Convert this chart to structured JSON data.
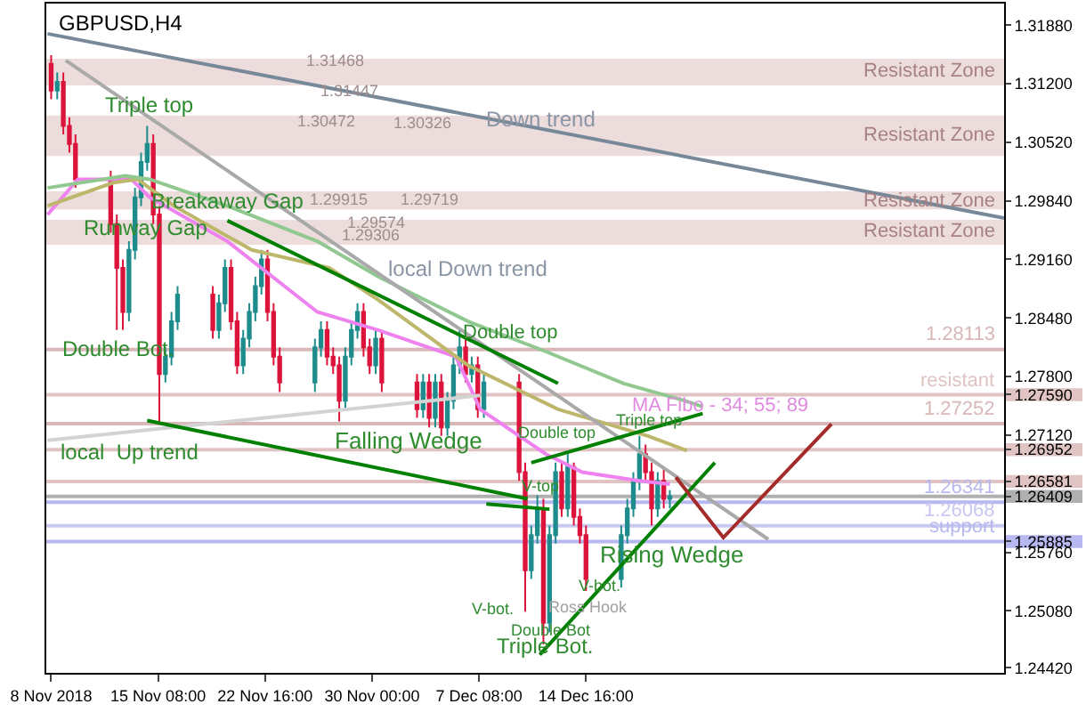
{
  "chart_data": {
    "type": "candlestick",
    "title": "GBPUSD,H4",
    "x": [
      "2018-11-08T00:00",
      "2018-11-08T10:00",
      "2018-11-08T20:00",
      "2018-11-09T06:00",
      "2018-11-09T16:00",
      "2018-11-12T02:00",
      "2018-11-12T12:00",
      "2018-11-12T22:00",
      "2018-11-13T08:00",
      "2018-11-13T18:00",
      "2018-11-14T04:00",
      "2018-11-14T14:00",
      "2018-11-15T00:00",
      "2018-11-15T10:00",
      "2018-11-15T20:00",
      "2018-11-16T06:00",
      "2018-11-16T16:00",
      "2018-11-19T02:00",
      "2018-11-19T12:00",
      "2018-11-19T22:00",
      "2018-11-20T08:00",
      "2018-11-20T18:00",
      "2018-11-21T04:00",
      "2018-11-21T14:00",
      "2018-11-22T00:00",
      "2018-11-22T10:00",
      "2018-11-22T20:00",
      "2018-11-23T06:00",
      "2018-11-23T16:00",
      "2018-11-26T02:00",
      "2018-11-26T12:00",
      "2018-11-26T22:00",
      "2018-11-27T08:00",
      "2018-11-27T18:00",
      "2018-11-28T04:00",
      "2018-11-28T14:00",
      "2018-11-29T00:00",
      "2018-11-29T10:00",
      "2018-11-29T20:00",
      "2018-11-30T06:00",
      "2018-11-30T16:00",
      "2018-12-03T02:00",
      "2018-12-03T12:00",
      "2018-12-03T22:00",
      "2018-12-04T08:00",
      "2018-12-04T18:00",
      "2018-12-05T04:00",
      "2018-12-05T14:00",
      "2018-12-06T00:00",
      "2018-12-06T10:00",
      "2018-12-06T20:00",
      "2018-12-07T06:00",
      "2018-12-07T16:00",
      "2018-12-10T02:00",
      "2018-12-10T12:00",
      "2018-12-10T22:00",
      "2018-12-11T08:00",
      "2018-12-11T18:00",
      "2018-12-12T04:00",
      "2018-12-12T14:00",
      "2018-12-13T00:00",
      "2018-12-13T10:00",
      "2018-12-13T20:00",
      "2018-12-14T06:00",
      "2018-12-14T16:00",
      "2018-12-17T02:00",
      "2018-12-17T12:00",
      "2018-12-17T22:00",
      "2018-12-18T08:00",
      "2018-12-18T18:00",
      "2018-12-19T04:00",
      "2018-12-19T14:00",
      "2018-12-20T00:00",
      "2018-12-20T10:00"
    ],
    "ohlc": [
      [
        1.3143,
        1.3153,
        1.3102,
        1.3112
      ],
      [
        1.3112,
        1.3133,
        1.3102,
        1.3122
      ],
      [
        1.3122,
        1.3133,
        1.3061,
        1.3071
      ],
      [
        1.3071,
        1.3081,
        1.304,
        1.305
      ],
      [
        1.305,
        1.3061,
        1.2999,
        1.3009
      ],
      [
        1.3009,
        1.3019,
        1.2947,
        1.2957
      ],
      [
        1.2957,
        1.2968,
        1.2834,
        1.2906
      ],
      [
        1.2906,
        1.2916,
        1.2834,
        1.2855
      ],
      [
        1.2855,
        1.2937,
        1.2844,
        1.2927
      ],
      [
        1.2927,
        1.2999,
        1.2916,
        1.2988
      ],
      [
        1.2988,
        1.304,
        1.2978,
        1.3029
      ],
      [
        1.3029,
        1.3071,
        1.3019,
        1.305
      ],
      [
        1.305,
        1.3061,
        1.2957,
        1.2968
      ],
      [
        1.2968,
        1.2978,
        1.2728,
        1.2783
      ],
      [
        1.2783,
        1.2814,
        1.2773,
        1.2803
      ],
      [
        1.2803,
        1.2855,
        1.2793,
        1.2844
      ],
      [
        1.2844,
        1.2885,
        1.2834,
        1.2875
      ],
      [
        1.2875,
        1.2885,
        1.2824,
        1.2834
      ],
      [
        1.2834,
        1.2875,
        1.2824,
        1.2865
      ],
      [
        1.2865,
        1.2916,
        1.2855,
        1.2906
      ],
      [
        1.2906,
        1.2916,
        1.2834,
        1.2844
      ],
      [
        1.2844,
        1.2855,
        1.2783,
        1.2793
      ],
      [
        1.2793,
        1.2834,
        1.2783,
        1.2824
      ],
      [
        1.2824,
        1.2865,
        1.2814,
        1.2855
      ],
      [
        1.2855,
        1.2896,
        1.2844,
        1.2885
      ],
      [
        1.2885,
        1.2927,
        1.2875,
        1.2916
      ],
      [
        1.2916,
        1.2927,
        1.2844,
        1.2855
      ],
      [
        1.2855,
        1.2865,
        1.2793,
        1.2803
      ],
      [
        1.2803,
        1.2814,
        1.2762,
        1.2773
      ],
      [
        1.2773,
        1.2824,
        1.2762,
        1.2814
      ],
      [
        1.2814,
        1.2844,
        1.2803,
        1.2834
      ],
      [
        1.2834,
        1.2844,
        1.2793,
        1.2803
      ],
      [
        1.2803,
        1.2814,
        1.2783,
        1.2793
      ],
      [
        1.2793,
        1.2803,
        1.2728,
        1.2752
      ],
      [
        1.2752,
        1.2814,
        1.2742,
        1.2803
      ],
      [
        1.2803,
        1.2844,
        1.2793,
        1.2834
      ],
      [
        1.2834,
        1.2865,
        1.2824,
        1.2855
      ],
      [
        1.2855,
        1.2865,
        1.2803,
        1.2814
      ],
      [
        1.2814,
        1.2824,
        1.2783,
        1.2793
      ],
      [
        1.2793,
        1.2834,
        1.2783,
        1.2824
      ],
      [
        1.2824,
        1.2834,
        1.2762,
        1.2773
      ],
      [
        1.2773,
        1.2783,
        1.2732,
        1.2742
      ],
      [
        1.2742,
        1.2783,
        1.2732,
        1.2773
      ],
      [
        1.2773,
        1.2783,
        1.2721,
        1.2732
      ],
      [
        1.2732,
        1.2783,
        1.2721,
        1.2773
      ],
      [
        1.2773,
        1.2783,
        1.2711,
        1.2721
      ],
      [
        1.2721,
        1.2762,
        1.2711,
        1.2752
      ],
      [
        1.2752,
        1.2803,
        1.2742,
        1.2793
      ],
      [
        1.2793,
        1.2834,
        1.2783,
        1.2814
      ],
      [
        1.2814,
        1.2824,
        1.2773,
        1.2783
      ],
      [
        1.2783,
        1.2803,
        1.2773,
        1.2793
      ],
      [
        1.2793,
        1.2803,
        1.2732,
        1.2742
      ],
      [
        1.2742,
        1.2783,
        1.2732,
        1.2773
      ],
      [
        1.2773,
        1.2783,
        1.2659,
        1.2669
      ],
      [
        1.2669,
        1.268,
        1.2507,
        1.2555
      ],
      [
        1.2555,
        1.2607,
        1.2545,
        1.2596
      ],
      [
        1.2596,
        1.2642,
        1.2586,
        1.2627
      ],
      [
        1.2627,
        1.2638,
        1.2469,
        1.2494
      ],
      [
        1.2494,
        1.2607,
        1.2483,
        1.2596
      ],
      [
        1.2596,
        1.268,
        1.2586,
        1.2669
      ],
      [
        1.2669,
        1.268,
        1.2617,
        1.2627
      ],
      [
        1.2627,
        1.269,
        1.2617,
        1.2675
      ],
      [
        1.2675,
        1.268,
        1.2607,
        1.2617
      ],
      [
        1.2617,
        1.2627,
        1.2586,
        1.2596
      ],
      [
        1.2596,
        1.2607,
        1.2531,
        1.2545
      ],
      [
        1.2545,
        1.2607,
        1.2535,
        1.2596
      ],
      [
        1.2596,
        1.2638,
        1.2586,
        1.2627
      ],
      [
        1.2627,
        1.2669,
        1.2617,
        1.2659
      ],
      [
        1.2659,
        1.2711,
        1.2648,
        1.269
      ],
      [
        1.269,
        1.2701,
        1.2659,
        1.2669
      ],
      [
        1.2669,
        1.268,
        1.2607,
        1.2627
      ],
      [
        1.2627,
        1.2669,
        1.2617,
        1.2659
      ],
      [
        1.2659,
        1.2675,
        1.2627,
        1.2638
      ],
      [
        1.2638,
        1.2648,
        1.2627,
        1.26409
      ]
    ],
    "colors": [
      "#dc143c",
      "#1e8c8c",
      "#dc143c",
      "#dc143c",
      "#dc143c",
      "#dc143c",
      "#dc143c",
      "#dc143c",
      "#1e8c8c",
      "#1e8c8c",
      "#1e8c8c",
      "#1e8c8c",
      "#dc143c",
      "#dc143c",
      "#1e8c8c",
      "#1e8c8c",
      "#1e8c8c",
      "#dc143c",
      "#1e8c8c",
      "#1e8c8c",
      "#dc143c",
      "#dc143c",
      "#1e8c8c",
      "#1e8c8c",
      "#1e8c8c",
      "#1e8c8c",
      "#dc143c",
      "#dc143c",
      "#dc143c",
      "#1e8c8c",
      "#1e8c8c",
      "#dc143c",
      "#dc143c",
      "#dc143c",
      "#1e8c8c",
      "#1e8c8c",
      "#1e8c8c",
      "#dc143c",
      "#dc143c",
      "#1e8c8c",
      "#dc143c",
      "#dc143c",
      "#1e8c8c",
      "#dc143c",
      "#1e8c8c",
      "#dc143c",
      "#1e8c8c",
      "#1e8c8c",
      "#1e8c8c",
      "#dc143c",
      "#1e8c8c",
      "#dc143c",
      "#1e8c8c",
      "#dc143c",
      "#dc143c",
      "#1e8c8c",
      "#1e8c8c",
      "#dc143c",
      "#1e8c8c",
      "#1e8c8c",
      "#dc143c",
      "#1e8c8c",
      "#dc143c",
      "#dc143c",
      "#dc143c",
      "#1e8c8c",
      "#1e8c8c",
      "#1e8c8c",
      "#1e8c8c",
      "#dc143c",
      "#dc143c",
      "#1e8c8c",
      "#dc143c",
      "#1e8c8c"
    ],
    "series": [
      {
        "type": "line",
        "color": "#ee82ee",
        "x": [
          "2018-11-07T18:00",
          "2018-11-09T20:00",
          "2018-11-13T12:00",
          "2018-11-14T18:00",
          "2018-11-20T02:00",
          "2018-11-26T06:00",
          "2018-11-30T10:00",
          "2018-12-05T18:00",
          "2018-12-07T10:00",
          "2018-12-11T22:00",
          "2018-12-14T10:00",
          "2018-12-18T08:00",
          "2018-12-20T10:00"
        ],
        "values": [
          1.2968,
          1.3009,
          1.3009,
          1.2988,
          1.2937,
          1.2855,
          1.2834,
          1.2803,
          1.2742,
          1.269,
          1.2669,
          1.2659,
          1.2655
        ]
      },
      {
        "type": "line",
        "color": "#bdb76b",
        "x": [
          "2018-11-07T18:00",
          "2018-11-12T06:00",
          "2018-11-13T22:00",
          "2018-11-16T10:00",
          "2018-11-21T18:00",
          "2018-11-27T02:00",
          "2018-11-30T10:00",
          "2018-12-06T14:00",
          "2018-12-12T18:00",
          "2018-12-18T22:00",
          "2018-12-21T14:00"
        ],
        "values": [
          1.2978,
          1.3005,
          1.3009,
          1.2978,
          1.2927,
          1.2906,
          1.2869,
          1.2793,
          1.2742,
          1.2711,
          1.2694
        ]
      },
      {
        "type": "line",
        "color": "#90c890",
        "x": [
          "2018-11-07T18:00",
          "2018-11-13T02:00",
          "2018-11-14T18:00",
          "2018-11-20T02:00",
          "2018-11-26T06:00",
          "2018-11-30T10:00",
          "2018-12-06T14:00",
          "2018-12-11T22:00",
          "2018-12-17T06:00",
          "2018-12-21T10:00",
          "2018-12-22T16:00"
        ],
        "values": [
          1.2999,
          1.3013,
          1.3009,
          1.2978,
          1.2937,
          1.2896,
          1.2844,
          1.2809,
          1.2772,
          1.2752,
          1.2745
        ]
      },
      {
        "type": "line",
        "color": "#778899",
        "x": [
          "2018-11-07T18:00",
          "2019-01-12T08:00"
        ],
        "values": [
          1.3178,
          1.2964
        ]
      },
      {
        "type": "line",
        "color": "#a9a9a9",
        "x": [
          "2018-11-09T00:00",
          "2018-12-27T04:00"
        ],
        "values": [
          1.3147,
          1.2591
        ]
      },
      {
        "type": "line",
        "color": "#d3d3d3",
        "x": [
          "2018-11-07T18:00",
          "2018-12-07T10:00"
        ],
        "values": [
          1.2706,
          1.2758
        ]
      },
      {
        "type": "line",
        "color": "#008000",
        "x": [
          "2018-11-20T02:00",
          "2018-12-12T18:00"
        ],
        "values": [
          1.2961,
          1.2772
        ]
      },
      {
        "type": "line",
        "color": "#008000",
        "x": [
          "2018-11-14T14:00",
          "2018-12-10T16:00"
        ],
        "values": [
          1.2729,
          1.2638
        ]
      },
      {
        "type": "line",
        "color": "#008000",
        "x": [
          "2018-12-07T20:00",
          "2018-12-12T04:00"
        ],
        "values": [
          1.2632,
          1.2626
        ]
      },
      {
        "type": "line",
        "color": "#008000",
        "x": [
          "2018-12-10T22:00",
          "2018-12-22T16:00"
        ],
        "values": [
          1.268,
          1.2737
        ]
      },
      {
        "type": "line",
        "color": "#008000",
        "x": [
          "2018-12-11T12:00",
          "2018-12-23T12:00"
        ],
        "values": [
          1.2457,
          1.268
        ]
      },
      {
        "type": "line",
        "color": "#a52a2a",
        "x": [
          "2018-12-20T20:00",
          "2018-12-24T02:00",
          "2018-12-31T12:00"
        ],
        "values": [
          1.2663,
          1.2593,
          1.2725
        ]
      }
    ],
    "xlim": [
      "2018-11-07T16:00",
      "2019-01-12T08:00"
    ],
    "xticks": [
      {
        "value": "2018-11-08",
        "label": "8 Nov 2018"
      },
      {
        "value": "2018-11-15T08:00",
        "label": "15 Nov 08:00"
      },
      {
        "value": "2018-11-22T16:00",
        "label": "22 Nov 16:00"
      },
      {
        "value": "2018-11-30T00:00",
        "label": "30 Nov 00:00"
      },
      {
        "value": "2018-12-07T08:00",
        "label": "7 Dec 08:00"
      },
      {
        "value": "2018-12-14T16:00",
        "label": "14 Dec 16:00"
      }
    ],
    "ylim": [
      1.2436,
      1.3213
    ],
    "yticks": [
      {
        "value": 1.3188,
        "label": "1.31880"
      },
      {
        "value": 1.312,
        "label": "1.31200"
      },
      {
        "value": 1.3052,
        "label": "1.30520"
      },
      {
        "value": 1.2984,
        "label": "1.29840"
      },
      {
        "value": 1.2916,
        "label": "1.29160"
      },
      {
        "value": 1.2848,
        "label": "1.28480"
      },
      {
        "value": 1.278,
        "label": "1.27800"
      },
      {
        "value": 1.2759,
        "label": "1.27590"
      },
      {
        "value": 1.2712,
        "label": "1.27120"
      },
      {
        "value": 1.26952,
        "label": "1.26952"
      },
      {
        "value": 1.26581,
        "label": "1.26581"
      },
      {
        "value": 1.26409,
        "label": "1.26409"
      },
      {
        "value": 1.25885,
        "label": "1.25885"
      },
      {
        "value": 1.2576,
        "label": "1.25760"
      },
      {
        "value": 1.2508,
        "label": "1.25080"
      },
      {
        "value": 1.2442,
        "label": "1.24420"
      }
    ],
    "bands": [
      {
        "axis": "y",
        "from": 1.3118,
        "to": 1.3149,
        "label": "Resistant Zone",
        "color": "#ecdcdc"
      },
      {
        "axis": "y",
        "from": 1.3036,
        "to": 1.3083,
        "label": "Resistant Zone",
        "color": "#ecdcdc"
      },
      {
        "axis": "y",
        "from": 1.2974,
        "to": 1.2995,
        "label": "Resistant Zone",
        "color": "#ecdcdc"
      },
      {
        "axis": "y",
        "from": 1.2933,
        "to": 1.2962,
        "label": "Resistant Zone",
        "color": "#ecdcdc"
      }
    ],
    "ref_lines": [
      {
        "axis": "y",
        "value": 1.28113,
        "label": "1.28113",
        "color": "#d8b8b8"
      },
      {
        "axis": "y",
        "value": 1.2759,
        "label": "resistant",
        "color": "#e0c4c4"
      },
      {
        "axis": "y",
        "value": 1.27252,
        "label": "1.27252",
        "color": "#d8b8b8"
      },
      {
        "axis": "y",
        "value": 1.26952,
        "label": null,
        "color": "#e0c4c4"
      },
      {
        "axis": "y",
        "value": 1.26581,
        "label": null,
        "color": "#e0c4c4"
      },
      {
        "axis": "y",
        "value": 1.26409,
        "label": null,
        "color": "#b0b0b0"
      },
      {
        "axis": "y",
        "value": 1.26341,
        "label": "1.26341",
        "color": "#b8b8f0"
      },
      {
        "axis": "y",
        "value": 1.26068,
        "label": "1.26068",
        "color": "#c8c8f0"
      },
      {
        "axis": "y",
        "value": 1.25885,
        "label": "support",
        "color": "#b8b8f0"
      }
    ],
    "annotations": [
      {
        "text": "Triple top",
        "x": "2018-11-14T18:00",
        "y": 1.3095
      },
      "Down trend",
      {
        "text": "Breakaway Gap",
        "x": "2018-11-20T02:00",
        "y": 1.2984
      },
      {
        "text": "Runway Gap",
        "x": "2018-11-14T12:00",
        "y": 1.2953
      },
      "local Down trend",
      {
        "text": "Double Bot.",
        "x": "2018-11-12T16:00",
        "y": 1.2813
      },
      "Double top",
      "Falling Wedge",
      {
        "text": "local  Up trend",
        "x": "2018-11-13T08:00",
        "y": 1.2692
      },
      "MA Fibo - 34; 55; 89",
      "Double top",
      {
        "text": "Triple top",
        "x": "2018-12-19T00:00",
        "y": 1.2729
      },
      {
        "text": "V-top",
        "x": "2018-12-11T14:00",
        "y": 1.2652
      },
      "Rising Wedge",
      "V-bot.",
      "V-bot.",
      "Ross Hook",
      "Double Bot",
      "Triple Bot.",
      {
        "text": "1.31468",
        "x": "2018-11-27T12:00",
        "y": 1.3147
      },
      "1.31447",
      {
        "text": "1.30472",
        "x": "2018-11-26T22:00",
        "y": 1.3077
      },
      {
        "text": "1.30326",
        "x": "2018-12-03T12:00",
        "y": 1.3075
      },
      {
        "text": "1.29915",
        "x": "2018-11-27T18:00",
        "y": 1.2986
      },
      {
        "text": "1.29719",
        "x": "2018-12-03T22:00",
        "y": 1.2986
      },
      {
        "text": "1.29574",
        "x": "2018-11-30T06:00",
        "y": 1.2958
      },
      "1.29306"
    ],
    "grid": false
  }
}
